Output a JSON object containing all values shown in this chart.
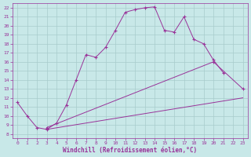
{
  "xlabel": "Windchill (Refroidissement éolien,°C)",
  "background_color": "#c8e8e8",
  "grid_color": "#a8cccc",
  "line_color": "#993399",
  "xlim": [
    -0.5,
    23.5
  ],
  "ylim": [
    7.5,
    22.5
  ],
  "xticks": [
    0,
    1,
    2,
    3,
    4,
    5,
    6,
    7,
    8,
    9,
    10,
    11,
    12,
    13,
    14,
    15,
    16,
    17,
    18,
    19,
    20,
    21,
    22,
    23
  ],
  "yticks": [
    8,
    9,
    10,
    11,
    12,
    13,
    14,
    15,
    16,
    17,
    18,
    19,
    20,
    21,
    22
  ],
  "line1_x": [
    0,
    1,
    2,
    3,
    4,
    5,
    6,
    7,
    8,
    9,
    10,
    11,
    12,
    13,
    14,
    15,
    16,
    17,
    18,
    19,
    20,
    21
  ],
  "line1_y": [
    11.5,
    10.0,
    8.7,
    8.5,
    9.2,
    11.2,
    14.0,
    16.8,
    16.5,
    17.6,
    19.5,
    21.5,
    21.8,
    22.0,
    22.1,
    19.5,
    19.3,
    21.0,
    18.5,
    18.0,
    16.2,
    14.8
  ],
  "line2_x": [
    3,
    20,
    23
  ],
  "line2_y": [
    8.7,
    16.0,
    13.0
  ],
  "line3_x": [
    3,
    23
  ],
  "line3_y": [
    8.5,
    12.0
  ]
}
